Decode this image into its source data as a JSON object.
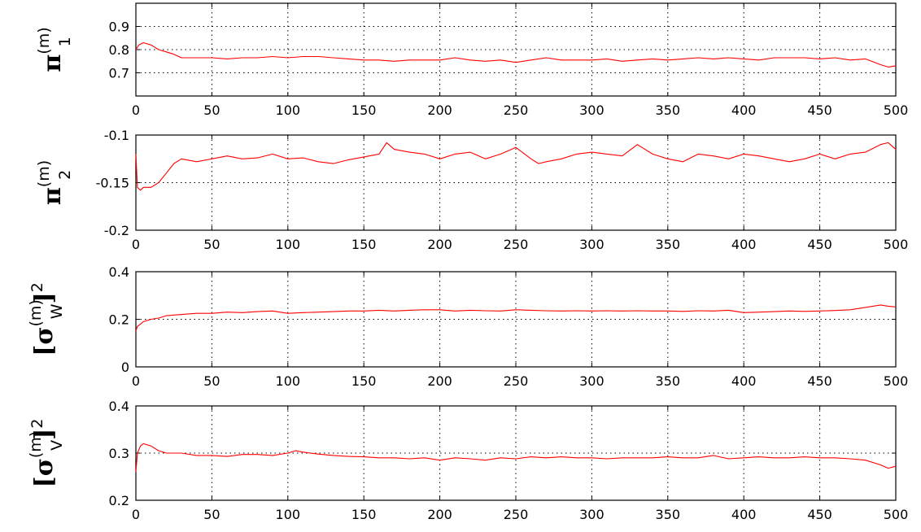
{
  "chart_data": [
    {
      "type": "line",
      "ylabel": {
        "base": "π",
        "sub": "1",
        "sup": "(m)"
      },
      "xlim": [
        0,
        500
      ],
      "ylim": [
        0.6,
        1.0
      ],
      "xticks": [
        "0",
        "50",
        "100",
        "150",
        "200",
        "250",
        "300",
        "350",
        "400",
        "450",
        "500"
      ],
      "yticks": [
        "0.7",
        "0.8",
        "0.9"
      ],
      "ytick_values": [
        0.7,
        0.8,
        0.9
      ],
      "grid": true,
      "color": "#ff0000",
      "series": [
        {
          "x": [
            0,
            2,
            5,
            10,
            15,
            20,
            25,
            30,
            40,
            50,
            60,
            70,
            80,
            90,
            100,
            110,
            120,
            130,
            140,
            150,
            160,
            170,
            180,
            190,
            200,
            210,
            220,
            230,
            240,
            250,
            260,
            270,
            280,
            290,
            300,
            310,
            320,
            330,
            340,
            350,
            360,
            370,
            380,
            390,
            400,
            410,
            420,
            430,
            440,
            450,
            460,
            470,
            480,
            490,
            495,
            500
          ],
          "values": [
            0.8,
            0.82,
            0.83,
            0.82,
            0.8,
            0.79,
            0.78,
            0.765,
            0.765,
            0.765,
            0.76,
            0.765,
            0.765,
            0.77,
            0.765,
            0.77,
            0.77,
            0.765,
            0.76,
            0.755,
            0.755,
            0.75,
            0.755,
            0.755,
            0.755,
            0.765,
            0.755,
            0.75,
            0.755,
            0.745,
            0.755,
            0.765,
            0.755,
            0.755,
            0.755,
            0.76,
            0.75,
            0.755,
            0.76,
            0.755,
            0.76,
            0.765,
            0.76,
            0.765,
            0.76,
            0.755,
            0.765,
            0.765,
            0.765,
            0.76,
            0.765,
            0.755,
            0.76,
            0.735,
            0.725,
            0.73
          ]
        }
      ]
    },
    {
      "type": "line",
      "ylabel": {
        "base": "π",
        "sub": "2",
        "sup": "(m)"
      },
      "xlim": [
        0,
        500
      ],
      "ylim": [
        -0.2,
        -0.1
      ],
      "xticks": [
        "0",
        "50",
        "100",
        "150",
        "200",
        "250",
        "300",
        "350",
        "400",
        "450",
        "500"
      ],
      "yticks": [
        "-0.2",
        "-0.15",
        "-0.1"
      ],
      "ytick_values": [
        -0.2,
        -0.15,
        -0.1
      ],
      "grid": true,
      "color": "#ff0000",
      "series": [
        {
          "x": [
            0,
            1,
            3,
            5,
            10,
            15,
            20,
            25,
            30,
            40,
            50,
            60,
            70,
            80,
            90,
            100,
            110,
            120,
            130,
            140,
            150,
            160,
            165,
            170,
            180,
            190,
            200,
            210,
            220,
            230,
            240,
            250,
            260,
            265,
            270,
            280,
            290,
            300,
            310,
            320,
            330,
            340,
            350,
            360,
            370,
            380,
            390,
            400,
            410,
            420,
            430,
            440,
            450,
            460,
            470,
            480,
            490,
            495,
            500
          ],
          "values": [
            -0.12,
            -0.155,
            -0.158,
            -0.155,
            -0.155,
            -0.15,
            -0.14,
            -0.13,
            -0.125,
            -0.128,
            -0.125,
            -0.122,
            -0.125,
            -0.124,
            -0.12,
            -0.125,
            -0.124,
            -0.128,
            -0.13,
            -0.126,
            -0.123,
            -0.12,
            -0.108,
            -0.115,
            -0.118,
            -0.12,
            -0.125,
            -0.12,
            -0.118,
            -0.125,
            -0.12,
            -0.113,
            -0.125,
            -0.13,
            -0.128,
            -0.125,
            -0.12,
            -0.118,
            -0.12,
            -0.122,
            -0.11,
            -0.12,
            -0.125,
            -0.128,
            -0.12,
            -0.122,
            -0.125,
            -0.12,
            -0.122,
            -0.125,
            -0.128,
            -0.125,
            -0.12,
            -0.125,
            -0.12,
            -0.118,
            -0.11,
            -0.108,
            -0.115
          ]
        }
      ]
    },
    {
      "type": "line",
      "ylabel": {
        "bracket": "[",
        "base": "σ",
        "sup": "(m)",
        "sub": "W",
        "close": "]",
        "power": "2"
      },
      "xlim": [
        0,
        500
      ],
      "ylim": [
        0,
        0.4
      ],
      "xticks": [
        "0",
        "50",
        "100",
        "150",
        "200",
        "250",
        "300",
        "350",
        "400",
        "450",
        "500"
      ],
      "yticks": [
        "0",
        "0.2",
        "0.4"
      ],
      "ytick_values": [
        0,
        0.2,
        0.4
      ],
      "grid": true,
      "color": "#ff0000",
      "series": [
        {
          "x": [
            0,
            1,
            3,
            5,
            10,
            15,
            20,
            30,
            40,
            50,
            60,
            70,
            80,
            90,
            100,
            110,
            120,
            130,
            140,
            150,
            160,
            170,
            180,
            190,
            200,
            210,
            220,
            230,
            240,
            250,
            260,
            270,
            280,
            290,
            300,
            310,
            320,
            330,
            340,
            350,
            360,
            370,
            380,
            390,
            400,
            410,
            420,
            430,
            440,
            450,
            460,
            470,
            480,
            490,
            495,
            500
          ],
          "values": [
            0.15,
            0.17,
            0.18,
            0.19,
            0.2,
            0.205,
            0.215,
            0.22,
            0.225,
            0.225,
            0.23,
            0.228,
            0.232,
            0.235,
            0.225,
            0.228,
            0.23,
            0.232,
            0.235,
            0.235,
            0.238,
            0.235,
            0.238,
            0.24,
            0.24,
            0.235,
            0.238,
            0.236,
            0.235,
            0.24,
            0.238,
            0.236,
            0.235,
            0.236,
            0.235,
            0.236,
            0.235,
            0.236,
            0.235,
            0.235,
            0.233,
            0.236,
            0.235,
            0.238,
            0.228,
            0.23,
            0.232,
            0.235,
            0.233,
            0.235,
            0.237,
            0.24,
            0.25,
            0.26,
            0.255,
            0.252
          ]
        }
      ]
    },
    {
      "type": "line",
      "ylabel": {
        "bracket": "[",
        "base": "σ",
        "sup": "(m)",
        "sub": "V",
        "close": "]",
        "power": "2"
      },
      "xlim": [
        0,
        500
      ],
      "ylim": [
        0.2,
        0.4
      ],
      "xticks": [
        "0",
        "50",
        "100",
        "150",
        "200",
        "250",
        "300",
        "350",
        "400",
        "450",
        "500"
      ],
      "yticks": [
        "0.2",
        "0.3",
        "0.4"
      ],
      "ytick_values": [
        0.2,
        0.3,
        0.4
      ],
      "grid": true,
      "color": "#ff0000",
      "series": [
        {
          "x": [
            0,
            1,
            3,
            5,
            10,
            15,
            20,
            25,
            30,
            40,
            50,
            60,
            70,
            80,
            90,
            100,
            105,
            110,
            120,
            130,
            140,
            150,
            160,
            170,
            180,
            190,
            200,
            210,
            220,
            230,
            240,
            250,
            260,
            270,
            280,
            290,
            300,
            310,
            320,
            330,
            340,
            350,
            360,
            370,
            380,
            390,
            400,
            410,
            420,
            430,
            440,
            450,
            460,
            470,
            480,
            490,
            495,
            500
          ],
          "values": [
            0.26,
            0.3,
            0.315,
            0.32,
            0.315,
            0.305,
            0.3,
            0.3,
            0.3,
            0.295,
            0.295,
            0.293,
            0.297,
            0.297,
            0.295,
            0.3,
            0.305,
            0.302,
            0.298,
            0.295,
            0.293,
            0.292,
            0.29,
            0.29,
            0.288,
            0.29,
            0.285,
            0.29,
            0.288,
            0.285,
            0.29,
            0.288,
            0.292,
            0.29,
            0.292,
            0.29,
            0.29,
            0.288,
            0.29,
            0.29,
            0.29,
            0.292,
            0.29,
            0.29,
            0.295,
            0.288,
            0.29,
            0.292,
            0.29,
            0.29,
            0.292,
            0.29,
            0.29,
            0.288,
            0.285,
            0.275,
            0.268,
            0.272
          ]
        }
      ]
    }
  ]
}
